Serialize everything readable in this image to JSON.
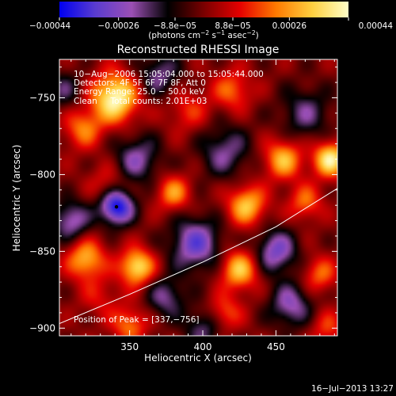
{
  "chart_data": {
    "type": "heatmap",
    "title": "Reconstructed RHESSI Image",
    "xlabel": "Heliocentric X (arcsec)",
    "ylabel": "Heliocentric Y (arcsec)",
    "xlim": [
      302,
      492
    ],
    "ylim": [
      -905,
      -725
    ],
    "x_ticks": [
      350,
      400,
      450
    ],
    "x_tick_labels": [
      "350",
      "400",
      "450"
    ],
    "y_ticks": [
      -900,
      -850,
      -800,
      -750
    ],
    "y_tick_labels": [
      "−900",
      "−850",
      "−800",
      "−750"
    ],
    "colorbar": {
      "range": [
        -0.00044,
        0.00044
      ],
      "ticks": [
        -0.00044,
        -0.00026,
        -8.8e-05,
        8.8e-05,
        0.00026,
        0.00044
      ],
      "tick_labels": [
        "−0.00044",
        "−0.00026",
        "−8.8e−05",
        "8.8e−05",
        "0.00026",
        "0.00044"
      ],
      "unit_parts": [
        "(photons cm",
        "−2",
        " s",
        "−1",
        " asec",
        "−2",
        ")"
      ],
      "colormap": "rhessi",
      "stops": [
        "#0000f0",
        "#5a3cd0",
        "#9b4fb4",
        "#000000",
        "#7a0000",
        "#e60000",
        "#ff7a00",
        "#ffd040",
        "#ffffc8"
      ]
    },
    "annotations": [
      "10−Aug−2006 15:05:04.000 to 15:05:44.000",
      "Detectors: 4F 5F 6F 7F 8F, Att 0",
      "Energy Range: 25.0 − 50.0 keV",
      "Clean     Total counts: 2.01E+03"
    ],
    "peak_label": "Position of Peak = [337,−756]",
    "peak": [
      337,
      -756
    ],
    "min_marker": [
      341,
      -821
    ],
    "limb_curve": [
      [
        302,
        -897
      ],
      [
        350,
        -878
      ],
      [
        400,
        -857
      ],
      [
        450,
        -834
      ],
      [
        492,
        -809
      ]
    ],
    "blobs": [
      [
        340,
        -750,
        0.00044,
        11
      ],
      [
        318,
        -770,
        0.00022,
        9
      ],
      [
        390,
        -758,
        0.00014,
        10
      ],
      [
        420,
        -745,
        0.0002,
        9
      ],
      [
        470,
        -760,
        -0.00018,
        12
      ],
      [
        455,
        -790,
        0.0003,
        9
      ],
      [
        487,
        -790,
        0.0004,
        8
      ],
      [
        355,
        -790,
        -0.00022,
        11
      ],
      [
        415,
        -785,
        -0.0002,
        12
      ],
      [
        335,
        -805,
        0.00012,
        9
      ],
      [
        380,
        -812,
        0.00025,
        8
      ],
      [
        430,
        -820,
        0.00032,
        9
      ],
      [
        470,
        -818,
        0.0002,
        8
      ],
      [
        341,
        -821,
        -0.00044,
        8
      ],
      [
        310,
        -830,
        -0.00025,
        9
      ],
      [
        395,
        -845,
        -0.0003,
        12
      ],
      [
        450,
        -850,
        -0.00028,
        10
      ],
      [
        320,
        -855,
        0.0003,
        9
      ],
      [
        355,
        -860,
        0.00038,
        8
      ],
      [
        425,
        -862,
        0.00032,
        9
      ],
      [
        480,
        -865,
        0.0002,
        8
      ],
      [
        330,
        -880,
        0.0001,
        10
      ],
      [
        375,
        -880,
        -0.0002,
        9
      ],
      [
        415,
        -890,
        0.00018,
        8
      ],
      [
        460,
        -885,
        -0.00024,
        10
      ],
      [
        350,
        -898,
        0.00022,
        8
      ],
      [
        400,
        -900,
        -0.00018,
        9
      ],
      [
        485,
        -900,
        0.00015,
        8
      ],
      [
        305,
        -745,
        -0.00015,
        9
      ],
      [
        370,
        -735,
        -0.0002,
        10
      ]
    ]
  },
  "timestamp": "16−Jul−2013 13:27"
}
